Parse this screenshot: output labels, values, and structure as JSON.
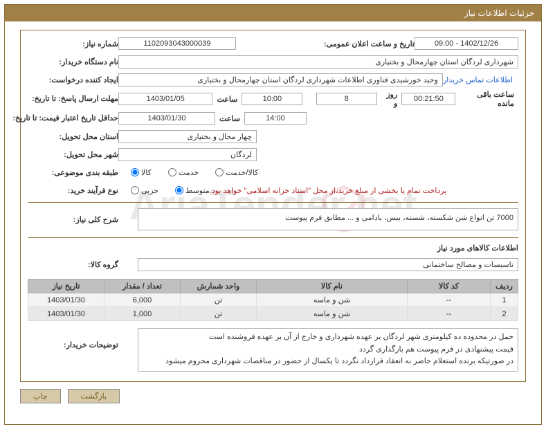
{
  "header": {
    "title": "جزئیات اطلاعات نیاز"
  },
  "watermark": "AriaTender.net",
  "fields": {
    "need_number_label": "شماره نیاز:",
    "need_number": "1102093043000039",
    "announce_label": "تاریخ و ساعت اعلان عمومی:",
    "announce_value": "1402/12/26 - 09:00",
    "buyer_org_label": "نام دستگاه خریدار:",
    "buyer_org": "شهرداری لردگان استان چهارمحال و بختیاری",
    "requester_label": "ایجاد کننده درخواست:",
    "requester": "وحید خورشیدی فناوری اطلاعات شهرداری لردگان استان چهارمحال و بختیاری",
    "buyer_contact_link": "اطلاعات تماس خریدار",
    "reply_deadline_label": "مهلت ارسال پاسخ: تا تاریخ:",
    "reply_deadline_date": "1403/01/05",
    "time_label": "ساعت",
    "reply_deadline_time": "10:00",
    "days_count": "8",
    "days_and_label": "روز و",
    "countdown": "00:21:50",
    "remaining_label": "ساعت باقی مانده",
    "price_validity_label": "حداقل تاریخ اعتبار قیمت: تا تاریخ:",
    "price_validity_date": "1403/01/30",
    "price_validity_time": "14:00",
    "delivery_province_label": "استان محل تحویل:",
    "delivery_province": "چهار محال و بختیاری",
    "delivery_city_label": "شهر محل تحویل:",
    "delivery_city": "لردگان",
    "category_label": "طبقه بندی موضوعی:",
    "purchase_type_label": "نوع فرآیند خرید:",
    "payment_notice": "پرداخت تمام یا بخشی از مبلغ خرید،از محل \"اسناد خزانه اسلامی\" خواهد بود."
  },
  "radios": {
    "category": [
      {
        "label": "کالا",
        "checked": true
      },
      {
        "label": "خدمت",
        "checked": false
      },
      {
        "label": "کالا/خدمت",
        "checked": false
      }
    ],
    "purchase_type": [
      {
        "label": "جزیی",
        "checked": false
      },
      {
        "label": "متوسط",
        "checked": true
      }
    ]
  },
  "summary": {
    "label": "شرح کلی نیاز:",
    "text": "7000 تن انواع شن شکسته، شسته، بیس، بادامی و ... مطابق فرم پیوست"
  },
  "goods": {
    "section_title": "اطلاعات کالاهای مورد نیاز",
    "group_label": "گروه کالا:",
    "group_value": "تاسیسات و مصالح ساختمانی",
    "columns": [
      "ردیف",
      "کد کالا",
      "نام کالا",
      "واحد شمارش",
      "تعداد / مقدار",
      "تاریخ نیاز"
    ],
    "col_widths": [
      "40px",
      "120px",
      "auto",
      "110px",
      "110px",
      "110px"
    ],
    "rows": [
      [
        "1",
        "--",
        "شن و ماسه",
        "تن",
        "6,000",
        "1403/01/30"
      ],
      [
        "2",
        "--",
        "شن و ماسه",
        "تن",
        "1,000",
        "1403/01/30"
      ]
    ]
  },
  "buyer_notes": {
    "label": "توضیحات خریدار:",
    "lines": [
      "حمل در محدوده ده کیلومتری شهر لردگان بر عهده شهرداری و خارج از آن بر عهده فروشنده است",
      "قیمت پیشنهادی در فرم پیوست هم بارگذاری گردد",
      "در صورتیکه برنده استعلام حاضر به انعقاد قرارداد نگردد تا یکسال از حضور در مناقصات شهرداری محروم میشود"
    ]
  },
  "buttons": {
    "print": "چاپ",
    "back": "بازگشت"
  },
  "colors": {
    "header_bg": "#a08046",
    "border": "#8e6f3b",
    "th_bg": "#c0c0c0",
    "btn_bg": "#d5c9a8"
  }
}
